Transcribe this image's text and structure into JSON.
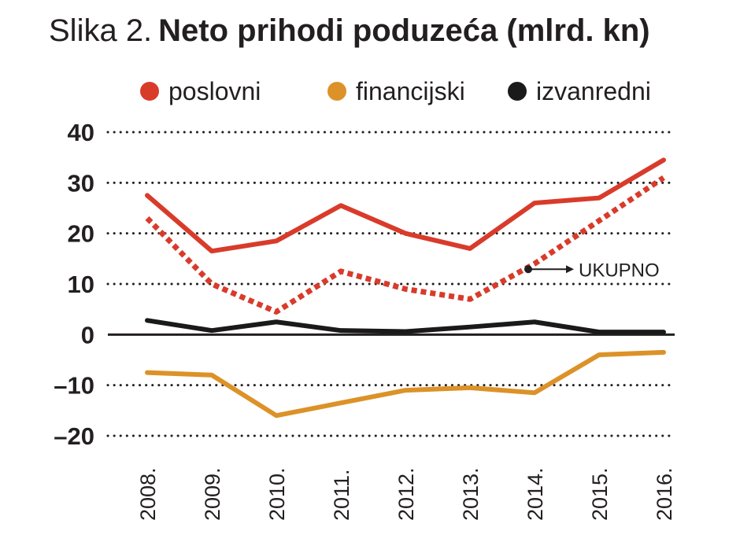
{
  "title_prefix": "Slika 2.",
  "title": "Neto prihodi poduzeća (mlrd. kn)",
  "colors": {
    "poslovni": "#d93b2b",
    "financijski": "#dc9228",
    "izvanredni": "#1a1a1a",
    "ukupno": "#d93b2b",
    "grid": "#231f20",
    "text": "#231f20"
  },
  "chart_data": {
    "type": "line",
    "title": "Neto prihodi poduzeća (mlrd. kn)",
    "xlabel": "",
    "ylabel": "",
    "categories": [
      "2008.",
      "2009.",
      "2010.",
      "2011.",
      "2012.",
      "2013.",
      "2014.",
      "2015.",
      "2016."
    ],
    "ylim": [
      -20,
      40
    ],
    "yticks": [
      40,
      30,
      20,
      10,
      0,
      -10,
      -20
    ],
    "ytick_labels": [
      "40",
      "30",
      "20",
      "10",
      "0",
      "–10",
      "–20"
    ],
    "grid": "dotted-horizontal",
    "legend_position": "top",
    "legend": [
      "poslovni",
      "financijski",
      "izvanredni"
    ],
    "series": [
      {
        "name": "poslovni",
        "style": "solid",
        "values": [
          27.5,
          16.5,
          18.5,
          25.5,
          20.0,
          17.0,
          26.0,
          27.0,
          34.5
        ]
      },
      {
        "name": "financijski",
        "style": "solid",
        "values": [
          -7.5,
          -8.0,
          -16.0,
          -13.5,
          -11.0,
          -10.5,
          -11.5,
          -4.0,
          -3.5
        ]
      },
      {
        "name": "izvanredni",
        "style": "solid",
        "values": [
          2.8,
          0.8,
          2.5,
          0.8,
          0.6,
          1.5,
          2.5,
          0.5,
          0.5
        ]
      },
      {
        "name": "UKUPNO",
        "style": "dotted",
        "values": [
          23.0,
          10.0,
          4.5,
          12.5,
          9.0,
          7.0,
          14.0,
          22.5,
          31.0
        ]
      }
    ],
    "annotations": [
      {
        "text": "UKUPNO",
        "points_to_series": "UKUPNO",
        "at_category": "2014."
      }
    ]
  }
}
